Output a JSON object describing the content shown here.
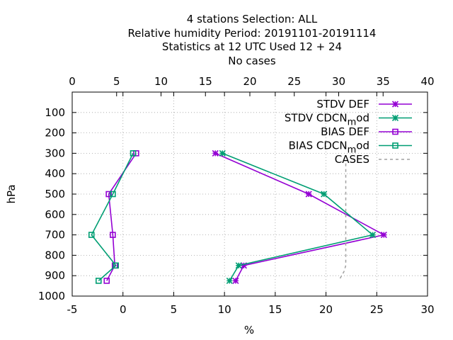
{
  "chart_data": {
    "type": "line",
    "title_lines": [
      "4 stations Selection: ALL",
      "Relative humidity  Period: 20191101-20191114",
      "Statistics at 12 UTC  Used  12 + 24",
      "No cases"
    ],
    "xlabel": "%",
    "ylabel": "hPa",
    "xlim": [
      -5,
      30
    ],
    "x2lim": [
      0,
      40
    ],
    "ylim": [
      1000,
      0
    ],
    "x_ticks": [
      -5,
      0,
      5,
      10,
      15,
      20,
      25,
      30
    ],
    "x2_ticks": [
      0,
      5,
      10,
      15,
      20,
      25,
      30,
      35,
      40
    ],
    "y_ticks": [
      100,
      200,
      300,
      400,
      500,
      600,
      700,
      800,
      900,
      1000
    ],
    "grid": true,
    "legend_position": "top-right",
    "series": [
      {
        "name": "STDV DEF",
        "color": "#9400d3",
        "marker": "star",
        "axis": "x1",
        "dash": false,
        "points": [
          [
            9.1,
            300
          ],
          [
            18.3,
            500
          ],
          [
            25.7,
            700
          ],
          [
            11.9,
            850
          ],
          [
            11.1,
            925
          ]
        ]
      },
      {
        "name": "STDV CDCN_mod",
        "color": "#009e73",
        "marker": "star",
        "axis": "x1",
        "dash": false,
        "points": [
          [
            9.8,
            300
          ],
          [
            19.8,
            500
          ],
          [
            24.6,
            700
          ],
          [
            11.4,
            850
          ],
          [
            10.5,
            925
          ]
        ]
      },
      {
        "name": "BIAS DEF",
        "color": "#9400d3",
        "marker": "box",
        "axis": "x1",
        "dash": false,
        "points": [
          [
            1.3,
            300
          ],
          [
            -1.4,
            500
          ],
          [
            -1.0,
            700
          ],
          [
            -0.8,
            850
          ],
          [
            -1.6,
            925
          ]
        ]
      },
      {
        "name": "BIAS CDCN_mod",
        "color": "#009e73",
        "marker": "box",
        "axis": "x1",
        "dash": false,
        "points": [
          [
            1.0,
            300
          ],
          [
            -1.0,
            500
          ],
          [
            -3.1,
            700
          ],
          [
            -0.7,
            850
          ],
          [
            -2.4,
            925
          ]
        ]
      },
      {
        "name": "CASES",
        "color": "#a0a0a0",
        "marker": "none",
        "axis": "x2",
        "dash": true,
        "points": [
          [
            30.8,
            350
          ],
          [
            30.8,
            400
          ],
          [
            30.8,
            500
          ],
          [
            30.8,
            600
          ],
          [
            30.8,
            700
          ],
          [
            30.8,
            800
          ],
          [
            30.8,
            850
          ],
          [
            30.6,
            880
          ],
          [
            30.0,
            925
          ]
        ]
      }
    ]
  }
}
